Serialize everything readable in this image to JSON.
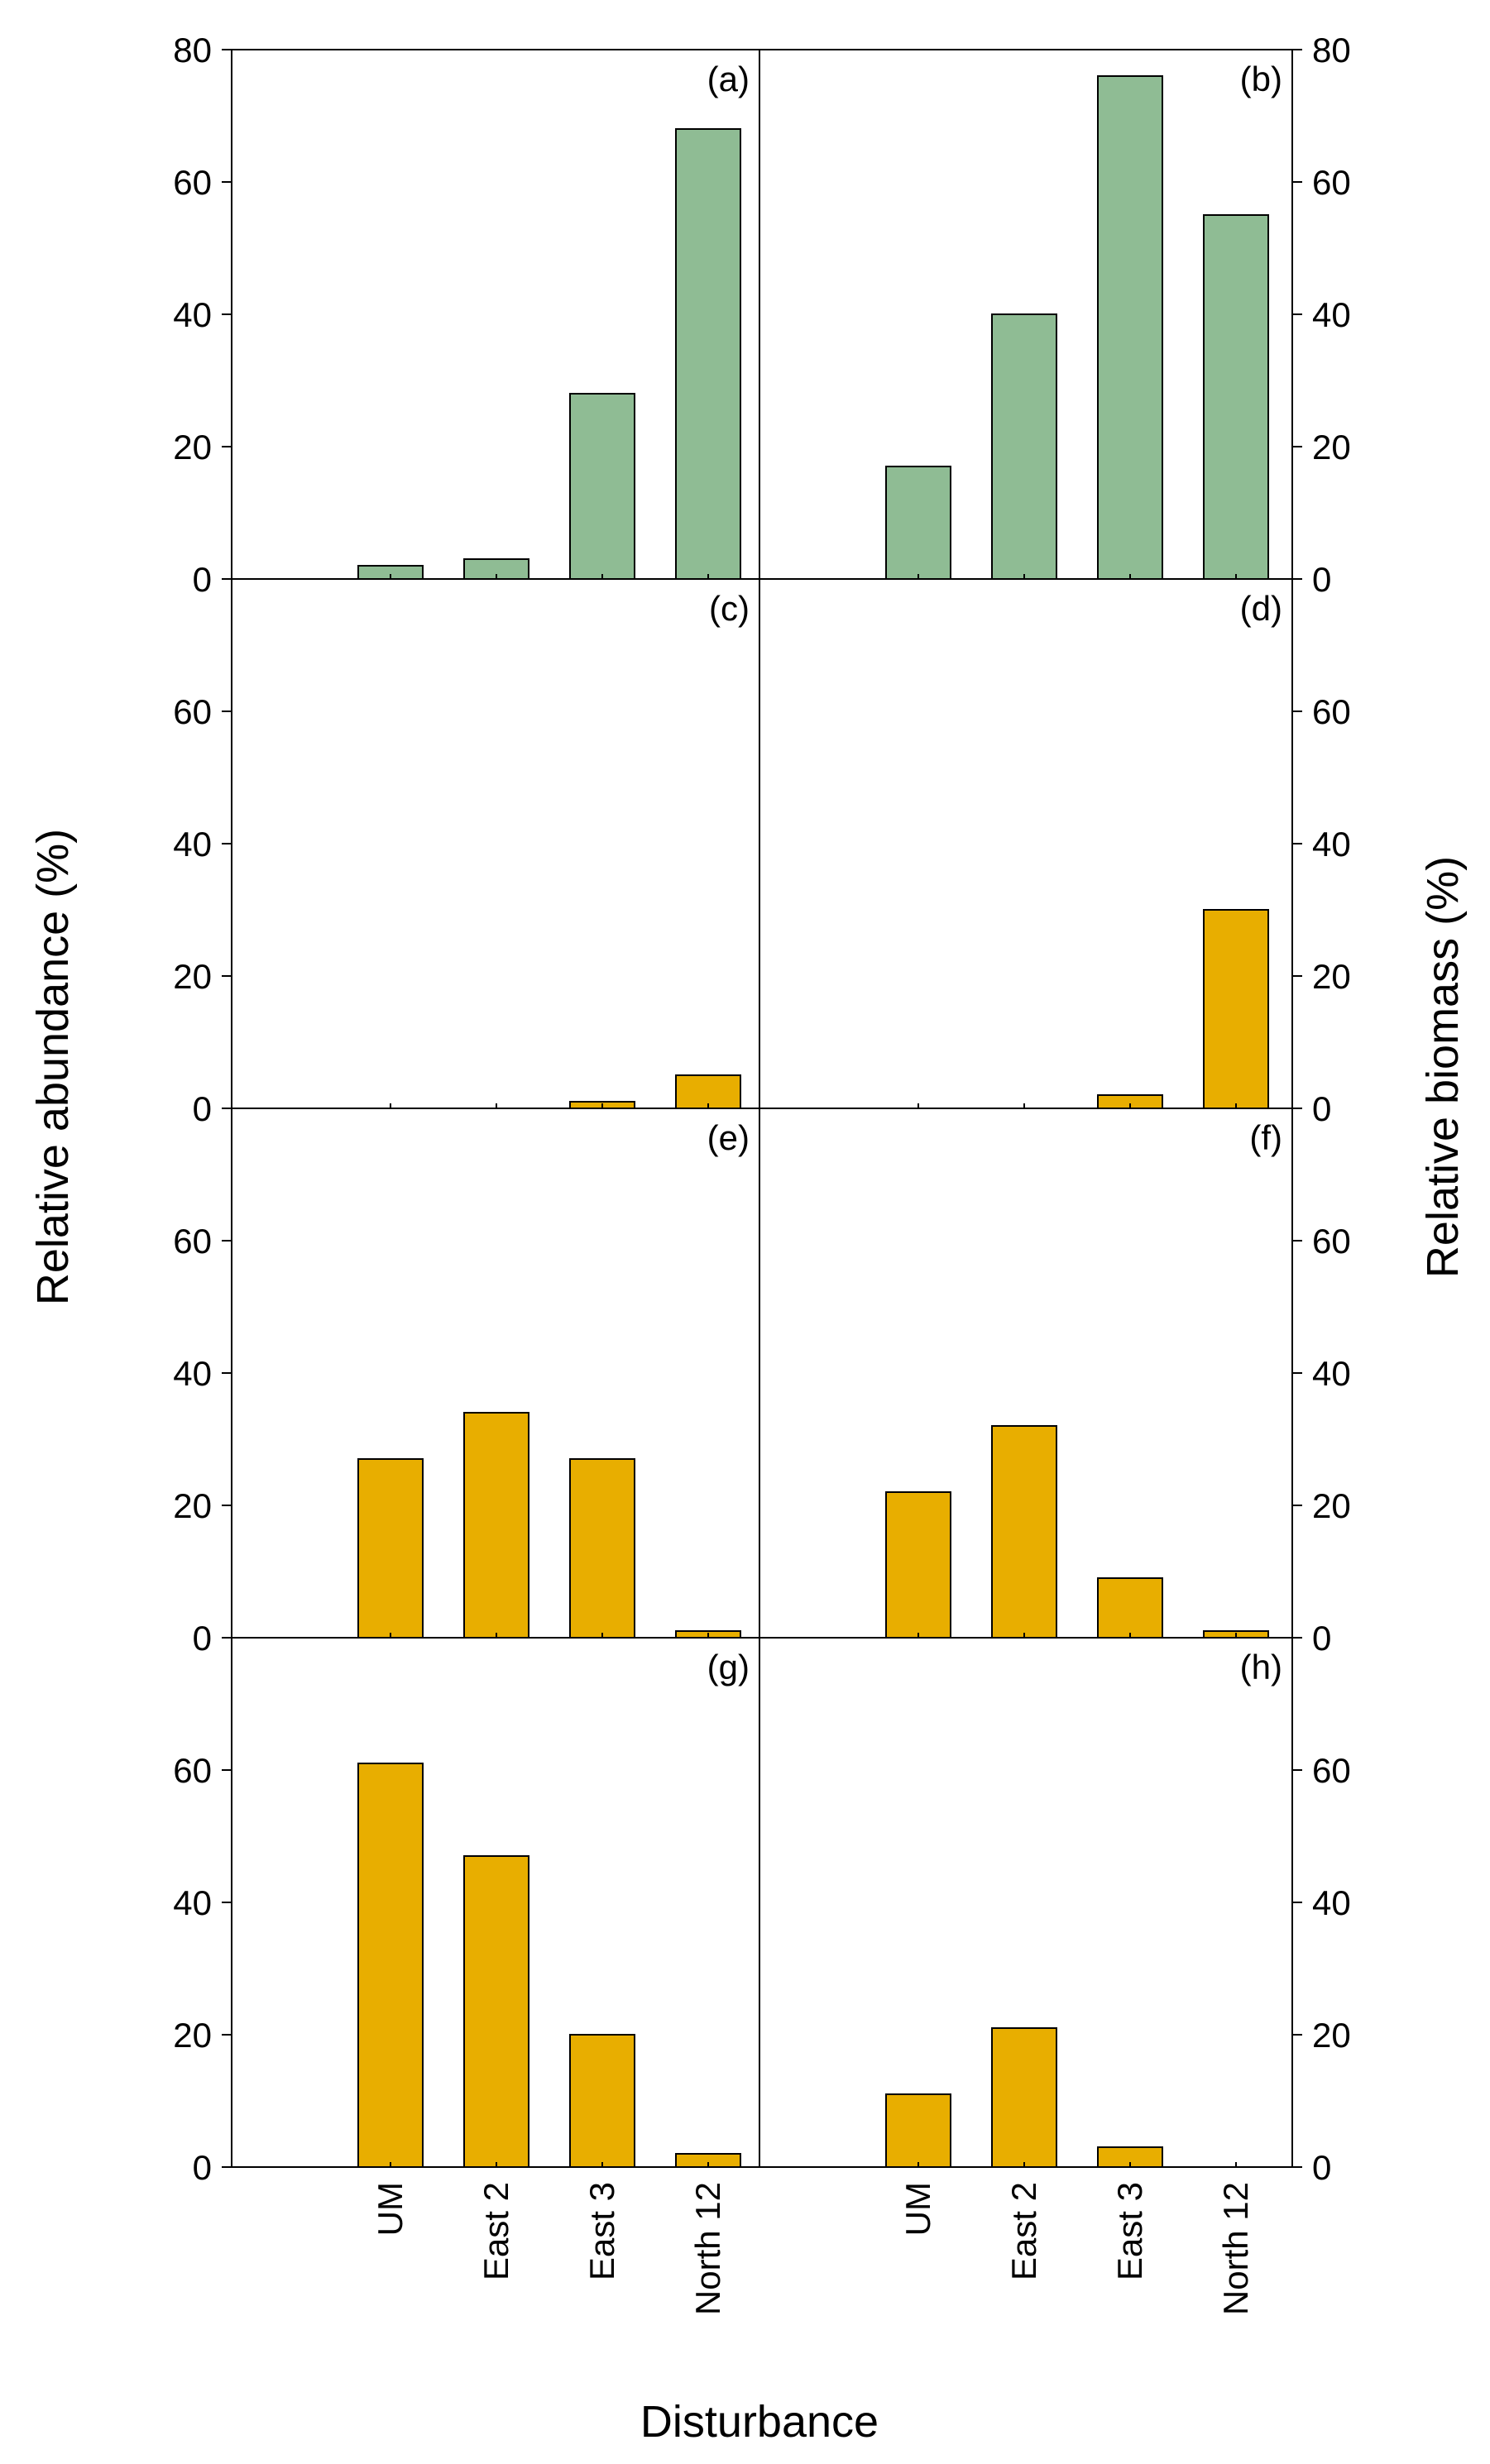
{
  "figure": {
    "ylabel_left": "Relative abundance (%)",
    "ylabel_right": "Relative biomass (%)",
    "xlabel": "Disturbance",
    "categories": [
      "UM",
      "East 2",
      "East 3",
      "North 12"
    ]
  },
  "colors": {
    "green": "#8fbc94",
    "orange": "#e8ae00",
    "axis": "#000000"
  },
  "chart_data": [
    {
      "type": "bar",
      "panel": "(a)",
      "row": 0,
      "col": 0,
      "categories": [
        "UM",
        "East 2",
        "East 3",
        "North 12"
      ],
      "values": [
        2,
        3,
        28,
        68
      ],
      "ylim": [
        0,
        80
      ],
      "yticks": [
        0,
        20,
        40,
        60,
        80
      ],
      "ytick_labels": [
        "0",
        "20",
        "40",
        "60",
        "80"
      ],
      "color": "green"
    },
    {
      "type": "bar",
      "panel": "(b)",
      "row": 0,
      "col": 1,
      "categories": [
        "UM",
        "East 2",
        "East 3",
        "North 12"
      ],
      "values": [
        17,
        40,
        76,
        55
      ],
      "ylim": [
        0,
        80
      ],
      "yticks": [
        0,
        20,
        40,
        60,
        80
      ],
      "ytick_labels": [
        "0",
        "20",
        "40",
        "60",
        "80"
      ],
      "color": "green"
    },
    {
      "type": "bar",
      "panel": "(c)",
      "row": 1,
      "col": 0,
      "categories": [
        "UM",
        "East 2",
        "East 3",
        "North 12"
      ],
      "values": [
        0,
        0,
        1,
        5
      ],
      "ylim": [
        0,
        80
      ],
      "yticks": [
        0,
        20,
        40,
        60
      ],
      "ytick_labels": [
        "0",
        "20",
        "40",
        "60"
      ],
      "color": "orange"
    },
    {
      "type": "bar",
      "panel": "(d)",
      "row": 1,
      "col": 1,
      "categories": [
        "UM",
        "East 2",
        "East 3",
        "North 12"
      ],
      "values": [
        0,
        0,
        2,
        30
      ],
      "ylim": [
        0,
        80
      ],
      "yticks": [
        0,
        20,
        40,
        60
      ],
      "ytick_labels": [
        "0",
        "20",
        "40",
        "60"
      ],
      "color": "orange"
    },
    {
      "type": "bar",
      "panel": "(e)",
      "row": 2,
      "col": 0,
      "categories": [
        "UM",
        "East 2",
        "East 3",
        "North 12"
      ],
      "values": [
        27,
        34,
        27,
        1
      ],
      "ylim": [
        0,
        80
      ],
      "yticks": [
        0,
        20,
        40,
        60
      ],
      "ytick_labels": [
        "0",
        "20",
        "40",
        "60"
      ],
      "color": "orange"
    },
    {
      "type": "bar",
      "panel": "(f)",
      "row": 2,
      "col": 1,
      "categories": [
        "UM",
        "East 2",
        "East 3",
        "North 12"
      ],
      "values": [
        22,
        32,
        9,
        1
      ],
      "ylim": [
        0,
        80
      ],
      "yticks": [
        0,
        20,
        40,
        60
      ],
      "ytick_labels": [
        "0",
        "20",
        "40",
        "60"
      ],
      "color": "orange"
    },
    {
      "type": "bar",
      "panel": "(g)",
      "row": 3,
      "col": 0,
      "categories": [
        "UM",
        "East 2",
        "East 3",
        "North 12"
      ],
      "values": [
        61,
        47,
        20,
        2
      ],
      "ylim": [
        0,
        80
      ],
      "yticks": [
        0,
        20,
        40,
        60
      ],
      "ytick_labels": [
        "0",
        "20",
        "40",
        "60"
      ],
      "color": "orange"
    },
    {
      "type": "bar",
      "panel": "(h)",
      "row": 3,
      "col": 1,
      "categories": [
        "UM",
        "East 2",
        "East 3",
        "North 12"
      ],
      "values": [
        11,
        21,
        3,
        0
      ],
      "ylim": [
        0,
        80
      ],
      "yticks": [
        0,
        20,
        40,
        60
      ],
      "ytick_labels": [
        "0",
        "20",
        "40",
        "60"
      ],
      "color": "orange"
    }
  ]
}
